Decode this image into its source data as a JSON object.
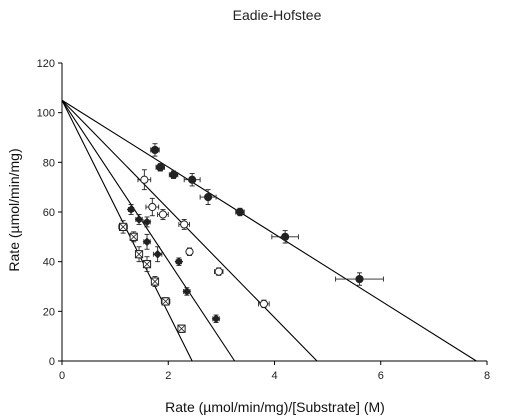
{
  "chart_data": {
    "type": "scatter",
    "title": "Eadie-Hofstee",
    "xlabel": "Rate (µmol/min/mg)/[Substrate] (M)",
    "ylabel": "Rate (µmol/min/mg)",
    "xlim": [
      0,
      8
    ],
    "ylim": [
      0,
      120
    ],
    "xticks": [
      0,
      2,
      4,
      6,
      8
    ],
    "yticks": [
      0,
      20,
      40,
      60,
      80,
      100,
      120
    ],
    "grid": false,
    "legend": "none",
    "colors": {
      "line": "#000000",
      "marker": "#222222",
      "marker_fill": "#ffffff"
    },
    "fit_lines": [
      {
        "x": [
          0,
          7.8
        ],
        "y": [
          105,
          0
        ]
      },
      {
        "x": [
          0,
          4.8
        ],
        "y": [
          105,
          0
        ]
      },
      {
        "x": [
          0,
          3.25
        ],
        "y": [
          105,
          0
        ]
      },
      {
        "x": [
          0,
          2.45
        ],
        "y": [
          105,
          0
        ]
      }
    ],
    "series": [
      {
        "marker": "filled-circle",
        "points": [
          {
            "x": 1.75,
            "y": 85,
            "xerr": 0.08,
            "yerr": 2.5
          },
          {
            "x": 1.85,
            "y": 78,
            "xerr": 0.08,
            "yerr": 1.5
          },
          {
            "x": 2.1,
            "y": 75,
            "xerr": 0.08,
            "yerr": 1.5
          },
          {
            "x": 2.45,
            "y": 73,
            "xerr": 0.15,
            "yerr": 2.5
          },
          {
            "x": 2.75,
            "y": 66,
            "xerr": 0.15,
            "yerr": 3
          },
          {
            "x": 3.35,
            "y": 60,
            "xerr": 0.08,
            "yerr": 1.5
          },
          {
            "x": 4.2,
            "y": 50,
            "xerr": 0.25,
            "yerr": 2.5
          },
          {
            "x": 5.6,
            "y": 33,
            "xerr": 0.45,
            "yerr": 2.5
          }
        ]
      },
      {
        "marker": "open-circle",
        "points": [
          {
            "x": 1.55,
            "y": 73,
            "xerr": 0.12,
            "yerr": 4
          },
          {
            "x": 1.7,
            "y": 62,
            "xerr": 0.12,
            "yerr": 3.5
          },
          {
            "x": 1.9,
            "y": 59,
            "xerr": 0.1,
            "yerr": 2
          },
          {
            "x": 2.3,
            "y": 55,
            "xerr": 0.1,
            "yerr": 2
          },
          {
            "x": 2.4,
            "y": 44,
            "xerr": 0.05,
            "yerr": 1.5
          },
          {
            "x": 2.95,
            "y": 36,
            "xerr": 0.08,
            "yerr": 1.5
          },
          {
            "x": 3.8,
            "y": 23,
            "xerr": 0.1,
            "yerr": 1.5
          }
        ]
      },
      {
        "marker": "filled-diamond",
        "points": [
          {
            "x": 1.3,
            "y": 61,
            "xerr": 0.05,
            "yerr": 2
          },
          {
            "x": 1.45,
            "y": 57,
            "xerr": 0.06,
            "yerr": 2
          },
          {
            "x": 1.6,
            "y": 56,
            "xerr": 0.06,
            "yerr": 2
          },
          {
            "x": 1.6,
            "y": 48,
            "xerr": 0.06,
            "yerr": 3
          },
          {
            "x": 1.8,
            "y": 43,
            "xerr": 0.08,
            "yerr": 3
          },
          {
            "x": 2.2,
            "y": 40,
            "xerr": 0.05,
            "yerr": 1.5
          },
          {
            "x": 2.35,
            "y": 28,
            "xerr": 0.06,
            "yerr": 1.5
          },
          {
            "x": 2.9,
            "y": 17,
            "xerr": 0.06,
            "yerr": 1.5
          }
        ]
      },
      {
        "marker": "hatched-square",
        "points": [
          {
            "x": 1.15,
            "y": 54,
            "xerr": 0.08,
            "yerr": 2.5
          },
          {
            "x": 1.35,
            "y": 50,
            "xerr": 0.06,
            "yerr": 2
          },
          {
            "x": 1.45,
            "y": 43,
            "xerr": 0.06,
            "yerr": 3
          },
          {
            "x": 1.6,
            "y": 39,
            "xerr": 0.06,
            "yerr": 3
          },
          {
            "x": 1.75,
            "y": 32,
            "xerr": 0.06,
            "yerr": 2
          },
          {
            "x": 1.95,
            "y": 24,
            "xerr": 0.08,
            "yerr": 1.5
          },
          {
            "x": 2.25,
            "y": 13,
            "xerr": 0.05,
            "yerr": 1.5
          }
        ]
      }
    ]
  }
}
